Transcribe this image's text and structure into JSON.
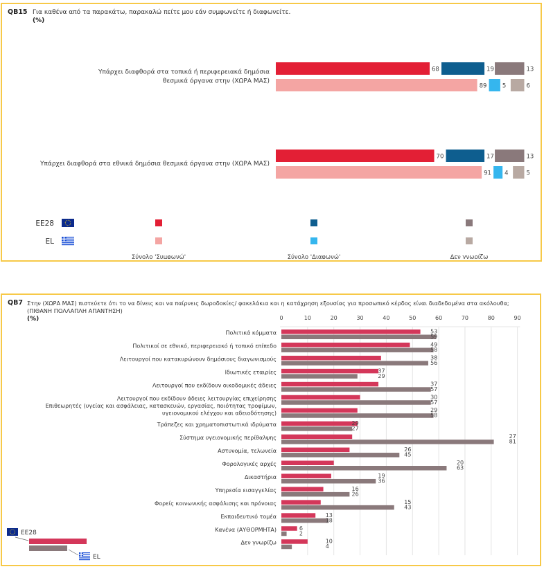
{
  "qb15": {
    "code": "QB15",
    "question": "Για καθένα από τα παρακάτω, παρακαλώ πείτε μου εάν συμφωνείτε ή διαφωνείτε.",
    "unit": "(%)",
    "legend": {
      "rows": [
        "ΕΕ28",
        "EL"
      ],
      "columns": [
        "Σύνολο 'Συμφωνώ'",
        "Σύνολο 'Διαφωνώ'",
        "Δεν γνωρίζω"
      ]
    }
  },
  "qb7": {
    "code": "QB7",
    "question_line1": "Στην (ΧΩΡΑ ΜΑΣ) πιστεύετε ότι το να δίνεις και να παίρνεις δωροδοκίες/ φακελάκια και η κατάχρηση εξουσίας για προσωπικό κέρδος είναι διαδεδομένα στα ακόλουθα;",
    "question_line2": "(ΠΙΘΑΝΗ ΠΟΛΛΑΠΛΗ ΑΠΑΝΤΗΣΗ)",
    "unit": "(%)",
    "legend": {
      "eu": "ΕΕ28",
      "el": "EL"
    }
  },
  "colors": {
    "frame": "#f7c948",
    "agree_eu": "#e31f35",
    "agree_el": "#f4a5a3",
    "disagree_eu": "#0e5e8f",
    "disagree_el": "#35b6ee",
    "dk_eu": "#8a797b",
    "dk_el": "#b8a9a2",
    "qb7_eu": "#d4375a",
    "qb7_el": "#8a797b"
  },
  "chart_data": [
    {
      "type": "bar",
      "stacked": true,
      "orientation": "horizontal",
      "title": "QB15 Για καθένα από τα παρακάτω, παρακαλώ πείτε μου εάν συμφωνείτε ή διαφωνείτε. (%)",
      "categories": [
        "Υπάρχει διαφθορά στα τοπικά ή περιφερειακά δημόσια θεσμικά όργανα στην (ΧΩΡΑ ΜΑΣ)",
        "Υπάρχει διαφθορά στα εθνικά δημόσια θεσμικά όργανα στην (ΧΩΡΑ ΜΑΣ)"
      ],
      "category_lines": [
        [
          "Υπάρχει διαφθορά στα τοπικά ή περιφερειακά δημόσια",
          "θεσμικά όργανα στην (ΧΩΡΑ ΜΑΣ)"
        ],
        [
          "Υπάρχει διαφθορά στα εθνικά δημόσια θεσμικά όργανα στην (ΧΩΡΑ ΜΑΣ)"
        ]
      ],
      "groups": [
        "ΕΕ28",
        "EL"
      ],
      "series": [
        {
          "name": "Σύνολο 'Συμφωνώ'",
          "ΕΕ28": [
            68,
            70
          ],
          "EL": [
            89,
            91
          ]
        },
        {
          "name": "Σύνολο 'Διαφωνώ'",
          "ΕΕ28": [
            19,
            17
          ],
          "EL": [
            5,
            4
          ]
        },
        {
          "name": "Δεν γνωρίζω",
          "ΕΕ28": [
            13,
            13
          ],
          "EL": [
            6,
            5
          ]
        }
      ],
      "xlim": [
        0,
        100
      ],
      "legend": "bottom"
    },
    {
      "type": "bar",
      "orientation": "horizontal",
      "title": "QB7 Στην (ΧΩΡΑ ΜΑΣ) πιστεύετε ότι το να δίνεις και να παίρνεις δωροδοκίες/ φακελάκια και η κατάχρηση εξουσίας για προσωπικό κέρδος είναι διαδεδομένα στα ακόλουθα; (ΠΙΘΑΝΗ ΠΟΛΛΑΠΛΗ ΑΠΑΝΤΗΣΗ) (%)",
      "categories": [
        "Πολιτικά κόμματα",
        "Πολιτικοί σε εθνικό, περιφερειακό ή τοπικό επίπεδο",
        "Λειτουργοί που κατακυρώνουν δημόσιους διαγωνισμούς",
        "Ιδιωτικές εταιρίες",
        "Λειτουργοί που εκδίδουν οικοδομικές άδειες",
        "Λειτουργοί που εκδίδουν άδειες λειτουργίας επιχείρησης",
        "Επιθεωρητές (υγείας και ασφάλειας, κατασκευών, εργασίας, ποιότητας τροφίμων, υγειονομικού ελέγχου και αδειοδότησης)",
        "Τράπεζες και χρηματοπιστωτικά ιδρύματα",
        "Σύστημα υγειονομικής περίθαλψης",
        "Αστυνομία, τελωνεία",
        "Φορολογικές αρχές",
        "Δικαστήρια",
        "Υπηρεσία εισαγγελίας",
        "Φορείς κοινωνικής ασφάλισης και πρόνοιας",
        "Εκπαιδευτικό τομέα",
        "Κανένα (ΑΥΘΟΡΜΗΤΑ)",
        "Δεν γνωρίζω"
      ],
      "category_lines": [
        [
          "Πολιτικά κόμματα"
        ],
        [
          "Πολιτικοί σε εθνικό, περιφερειακό ή τοπικό επίπεδο"
        ],
        [
          "Λειτουργοί που κατακυρώνουν δημόσιους διαγωνισμούς"
        ],
        [
          "Ιδιωτικές εταιρίες"
        ],
        [
          "Λειτουργοί που εκδίδουν οικοδομικές άδειες"
        ],
        [
          "Λειτουργοί που εκδίδουν άδειες λειτουργίας επιχείρησης"
        ],
        [
          "Επιθεωρητές (υγείας και ασφάλειας, κατασκευών, εργασίας, ποιότητας τροφίμων,",
          "υγειονομικού ελέγχου και αδειοδότησης)"
        ],
        [
          "Τράπεζες και χρηματοπιστωτικά ιδρύματα"
        ],
        [
          "Σύστημα υγειονομικής περίθαλψης"
        ],
        [
          "Αστυνομία, τελωνεία"
        ],
        [
          "Φορολογικές αρχές"
        ],
        [
          "Δικαστήρια"
        ],
        [
          "Υπηρεσία εισαγγελίας"
        ],
        [
          "Φορείς κοινωνικής ασφάλισης και πρόνοιας"
        ],
        [
          "Εκπαιδευτικό τομέα"
        ],
        [
          "Κανένα (ΑΥΘΟΡΜΗΤΑ)"
        ],
        [
          "Δεν γνωρίζω"
        ]
      ],
      "series": [
        {
          "name": "ΕΕ28",
          "values": [
            53,
            49,
            38,
            37,
            37,
            30,
            29,
            29,
            27,
            26,
            20,
            19,
            16,
            15,
            13,
            6,
            10
          ]
        },
        {
          "name": "EL",
          "values": [
            59,
            58,
            56,
            29,
            57,
            57,
            58,
            27,
            81,
            45,
            63,
            36,
            26,
            43,
            18,
            2,
            4
          ]
        }
      ],
      "xticks": [
        0,
        10,
        20,
        30,
        40,
        50,
        60,
        70,
        80,
        90
      ],
      "xlim": [
        0,
        90
      ],
      "grid": true,
      "legend": "bottom-left"
    }
  ]
}
